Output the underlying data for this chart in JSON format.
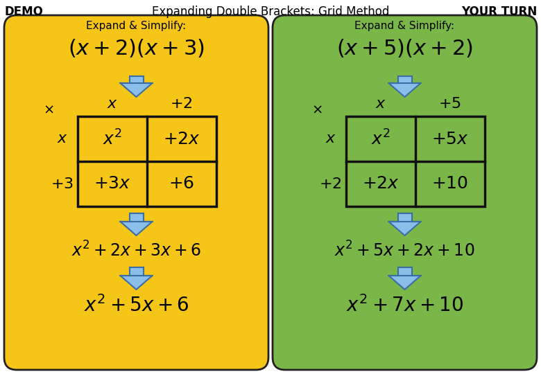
{
  "title": "Expanding Double Brackets: Grid Method",
  "title_left": "DEMO",
  "title_right": "YOUR TURN",
  "bg_color": "#ffffff",
  "left_bg": "#F5C518",
  "right_bg": "#7AB648",
  "left_label": "Expand & Simplify:",
  "right_label": "Expand & Simplify:",
  "left_expr": "$(x + 2)(x + 3)$",
  "right_expr": "$(x + 5)(x + 2)$",
  "left_col_labels": [
    "$x$",
    "$+ 2$"
  ],
  "left_row_labels": [
    "$x$",
    "$+ 3$"
  ],
  "left_grid": [
    [
      "$x^2$",
      "$+ 2x$"
    ],
    [
      "$+ 3x$",
      "$+ 6$"
    ]
  ],
  "right_col_labels": [
    "$x$",
    "$+ 5$"
  ],
  "right_row_labels": [
    "$x$",
    "$+ 2$"
  ],
  "right_grid": [
    [
      "$x^2$",
      "$+ 5x$"
    ],
    [
      "$+ 2x$",
      "$+ 10$"
    ]
  ],
  "left_step1": "$x^2 + 2x + 3x + 6$",
  "left_step2": "$x^2 + 5x + 6$",
  "right_step1": "$x^2 + 5x + 2x + 10$",
  "right_step2": "$x^2 + 7x + 10$",
  "arrow_color": "#8bbee8",
  "arrow_edge": "#3a6ea5",
  "panel_edge": "#222222",
  "title_fontsize": 12,
  "label_fontsize": 11,
  "expr_fontsize": 22,
  "grid_fontsize": 18,
  "step1_fontsize": 17,
  "step2_fontsize": 20,
  "cross_fontsize": 14,
  "col_row_fontsize": 16
}
